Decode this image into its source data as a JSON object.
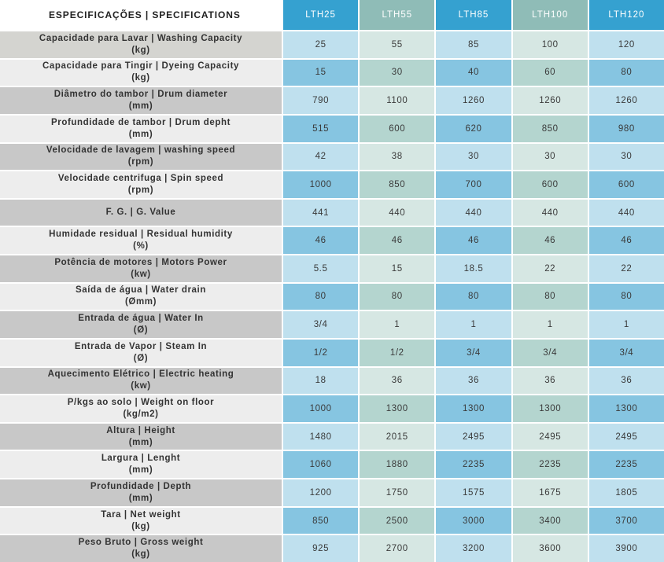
{
  "table": {
    "header_label": "ESPECIFICAÇÕES | SPECIFICATIONS",
    "models": [
      {
        "name": "LTH25",
        "color": "#35a1d0"
      },
      {
        "name": "LTH55",
        "color": "#8fbcb7"
      },
      {
        "name": "LTH85",
        "color": "#35a1d0"
      },
      {
        "name": "LTH100",
        "color": "#8fbcb7"
      },
      {
        "name": "LTH120",
        "color": "#35a1d0"
      }
    ],
    "row_colors": {
      "light": [
        "#bfe0ee",
        "#d6e7e3",
        "#bfe0ee",
        "#d6e7e3",
        "#bfe0ee"
      ],
      "dark": [
        "#86c5e1",
        "#b4d5cf",
        "#86c5e1",
        "#b4d5cf",
        "#86c5e1"
      ]
    },
    "rows": [
      {
        "label": "Capacidade para Lavar | Washing Capacity",
        "unit": "(kg)",
        "values": [
          "25",
          "55",
          "85",
          "100",
          "120"
        ]
      },
      {
        "label": "Capacidade para Tingir | Dyeing Capacity",
        "unit": "(kg)",
        "values": [
          "15",
          "30",
          "40",
          "60",
          "80"
        ]
      },
      {
        "label": "Diâmetro do tambor | Drum diameter",
        "unit": "(mm)",
        "values": [
          "790",
          "1100",
          "1260",
          "1260",
          "1260"
        ]
      },
      {
        "label": "Profundidade de tambor | Drum depht",
        "unit": "(mm)",
        "values": [
          "515",
          "600",
          "620",
          "850",
          "980"
        ]
      },
      {
        "label": "Velocidade de lavagem | washing speed",
        "unit": "(rpm)",
        "values": [
          "42",
          "38",
          "30",
          "30",
          "30"
        ]
      },
      {
        "label": "Velocidade centrifuga | Spin speed",
        "unit": "(rpm)",
        "values": [
          "1000",
          "850",
          "700",
          "600",
          "600"
        ]
      },
      {
        "label": "F. G. | G. Value",
        "unit": "",
        "values": [
          "441",
          "440",
          "440",
          "440",
          "440"
        ]
      },
      {
        "label": "Humidade residual | Residual humidity",
        "unit": "(%)",
        "values": [
          "46",
          "46",
          "46",
          "46",
          "46"
        ]
      },
      {
        "label": "Potência de motores | Motors Power",
        "unit": "(kw)",
        "values": [
          "5.5",
          "15",
          "18.5",
          "22",
          "22"
        ]
      },
      {
        "label": "Saída de água | Water drain",
        "unit": "(Ømm)",
        "values": [
          "80",
          "80",
          "80",
          "80",
          "80"
        ]
      },
      {
        "label": "Entrada de água | Water In",
        "unit": "(Ø)",
        "values": [
          "3/4",
          "1",
          "1",
          "1",
          "1"
        ]
      },
      {
        "label": "Entrada de Vapor | Steam In",
        "unit": "(Ø)",
        "values": [
          "1/2",
          "1/2",
          "3/4",
          "3/4",
          "3/4"
        ]
      },
      {
        "label": "Aquecimento Elétrico | Electric heating",
        "unit": "(kw)",
        "values": [
          "18",
          "36",
          "36",
          "36",
          "36"
        ]
      },
      {
        "label": "P/kgs ao solo | Weight on floor",
        "unit": "(kg/m2)",
        "values": [
          "1000",
          "1300",
          "1300",
          "1300",
          "1300"
        ]
      },
      {
        "label": "Altura | Height",
        "unit": "(mm)",
        "values": [
          "1480",
          "2015",
          "2495",
          "2495",
          "2495"
        ]
      },
      {
        "label": "Largura | Lenght",
        "unit": "(mm)",
        "values": [
          "1060",
          "1880",
          "2235",
          "2235",
          "2235"
        ]
      },
      {
        "label": "Profundidade | Depth",
        "unit": "(mm)",
        "values": [
          "1200",
          "1750",
          "1575",
          "1675",
          "1805"
        ]
      },
      {
        "label": "Tara | Net weight",
        "unit": "(kg)",
        "values": [
          "850",
          "2500",
          "3000",
          "3400",
          "3700"
        ]
      },
      {
        "label": "Peso Bruto | Gross weight",
        "unit": "(kg)",
        "values": [
          "925",
          "2700",
          "3200",
          "3600",
          "3900"
        ]
      }
    ]
  }
}
